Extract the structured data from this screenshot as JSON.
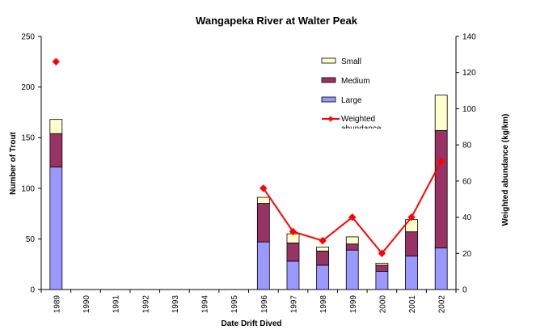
{
  "chart_data": {
    "type": "bar",
    "title": "Wangapeka River at Walter Peak",
    "xlabel": "Date Drift Dived",
    "ylabel": "Number of Trout",
    "y2label": "Weighted abundance (kg/km)",
    "ylim": [
      0,
      250
    ],
    "y2lim": [
      0,
      140
    ],
    "y_ticks": [
      "0",
      "50",
      "100",
      "150",
      "200",
      "250"
    ],
    "y2_ticks": [
      "0",
      "20",
      "40",
      "60",
      "80",
      "100",
      "120",
      "140"
    ],
    "categories": [
      "1989",
      "1990",
      "1991",
      "1992",
      "1993",
      "1994",
      "1995",
      "1996",
      "1997",
      "1998",
      "1999",
      "2000",
      "2001",
      "2002"
    ],
    "stacked": true,
    "series": [
      {
        "name": "Large",
        "axis": "left",
        "type": "bar",
        "color": "#9999ff",
        "values": [
          121,
          null,
          null,
          null,
          null,
          null,
          null,
          47,
          28,
          24,
          39,
          18,
          33,
          41
        ]
      },
      {
        "name": "Medium",
        "axis": "left",
        "type": "bar",
        "color": "#993366",
        "values": [
          33,
          null,
          null,
          null,
          null,
          null,
          null,
          38,
          18,
          14,
          6,
          6,
          24,
          116
        ]
      },
      {
        "name": "Small",
        "axis": "left",
        "type": "bar",
        "color": "#ffffcc",
        "values": [
          14,
          null,
          null,
          null,
          null,
          null,
          null,
          6,
          9,
          4,
          7,
          2,
          12,
          35
        ]
      },
      {
        "name": "Weighted abundance",
        "axis": "right",
        "type": "line",
        "color": "#ff0000",
        "values": [
          126,
          null,
          null,
          null,
          null,
          null,
          null,
          56,
          32,
          27,
          40,
          20,
          40,
          71
        ]
      }
    ],
    "legend": {
      "position": "top-right",
      "entries": [
        "Small",
        "Medium",
        "Large",
        "Weighted abundance"
      ],
      "visible_text": [
        "Small",
        "Medium",
        "Large",
        "Weighted",
        "abundance"
      ]
    },
    "grid": false
  }
}
